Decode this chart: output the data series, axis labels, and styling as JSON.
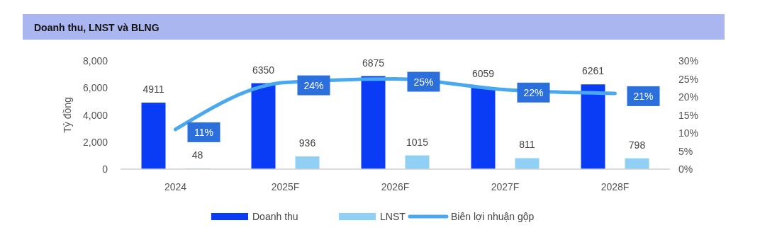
{
  "chart_data": {
    "type": "bar",
    "title": "Doanh thu, LNST và BLNG",
    "ylabel": "Tỷ đồng",
    "categories": [
      "2024",
      "2025F",
      "2026F",
      "2027F",
      "2028F"
    ],
    "series": [
      {
        "name": "Doanh thu",
        "color": "#0b3cf5",
        "values": [
          4911,
          6350,
          6875,
          6059,
          6261
        ],
        "value_labels": [
          "4911",
          "6350",
          "6875",
          "6059",
          "6261"
        ]
      },
      {
        "name": "LNST",
        "color": "#90d0f4",
        "values": [
          48,
          936,
          1015,
          811,
          798
        ],
        "value_labels": [
          "48",
          "936",
          "1015",
          "811",
          "798"
        ]
      },
      {
        "name": "Biên lợi nhuận gộp",
        "type": "line",
        "axis": "y2",
        "color": "#4aa8ee",
        "values": [
          11,
          24,
          25,
          22,
          21
        ],
        "value_labels": [
          "11%",
          "24%",
          "25%",
          "22%",
          "21%"
        ]
      }
    ],
    "ylim": [
      0,
      8000
    ],
    "yticks": [
      0,
      {
        "value": 2000,
        "label": "2,000"
      },
      {
        "value": 4000,
        "label": "4,000"
      },
      {
        "value": 6000,
        "label": "6,000"
      },
      {
        "value": 8000,
        "label": "8,000"
      }
    ],
    "y2lim": [
      0,
      30
    ],
    "y2ticks": [
      {
        "value": 0,
        "label": "0%"
      },
      {
        "value": 5,
        "label": "5%"
      },
      {
        "value": 10,
        "label": "10%"
      },
      {
        "value": 15,
        "label": "15%"
      },
      {
        "value": 20,
        "label": "20%"
      },
      {
        "value": 25,
        "label": "25%"
      },
      {
        "value": 30,
        "label": "30%"
      }
    ],
    "legend": "bottom",
    "grid": false
  }
}
